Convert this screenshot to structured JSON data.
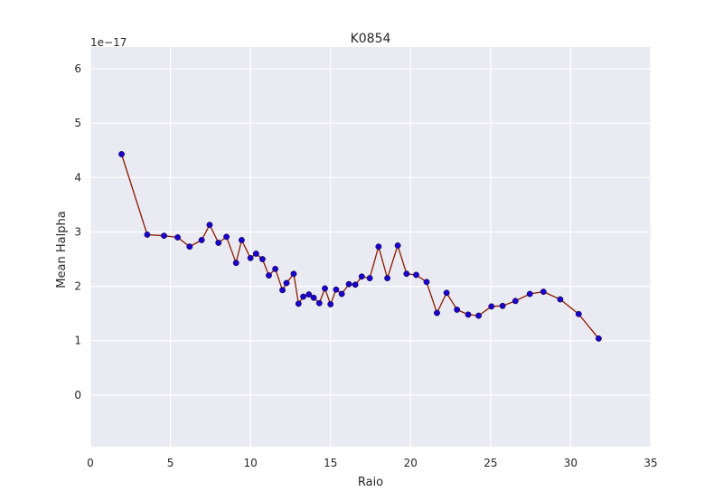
{
  "chart_data": {
    "type": "line",
    "title": "K0854",
    "xlabel": "Raio",
    "ylabel": "Mean Halpha",
    "y_offset_text": "1e−17",
    "xlim": [
      0,
      35
    ],
    "ylim": [
      -0.95,
      6.4
    ],
    "xticks": [
      0,
      5,
      10,
      15,
      20,
      25,
      30,
      35
    ],
    "yticks": [
      0,
      1,
      2,
      3,
      4,
      5,
      6
    ],
    "grid": true,
    "style": {
      "background": "#EAEAF2",
      "grid_color": "#FFFFFF",
      "line_color": "#8B1A00",
      "marker_color": "#1A00CC"
    },
    "series": [
      {
        "x": [
          1.95,
          3.55,
          4.6,
          5.45,
          6.2,
          6.95,
          7.45,
          8.0,
          8.5,
          9.1,
          9.45,
          10.0,
          10.35,
          10.75,
          11.15,
          11.55,
          12.0,
          12.25,
          12.7,
          13.0,
          13.3,
          13.65,
          13.95,
          14.3,
          14.65,
          15.0,
          15.35,
          15.7,
          16.15,
          16.55,
          16.95,
          17.45,
          18.0,
          18.55,
          19.2,
          19.75,
          20.35,
          21.0,
          21.65,
          22.25,
          22.9,
          23.6,
          24.25,
          25.05,
          25.75,
          26.55,
          27.45,
          28.3,
          29.35,
          30.5,
          31.75
        ],
        "y": [
          4.43,
          2.95,
          2.93,
          2.9,
          2.73,
          2.85,
          3.13,
          2.8,
          2.91,
          2.43,
          2.85,
          2.52,
          2.6,
          2.5,
          2.2,
          2.32,
          1.93,
          2.06,
          2.23,
          1.68,
          1.81,
          1.85,
          1.79,
          1.69,
          1.96,
          1.67,
          1.94,
          1.86,
          2.04,
          2.03,
          2.18,
          2.15,
          2.73,
          2.15,
          2.75,
          2.23,
          2.21,
          2.08,
          1.51,
          1.88,
          1.57,
          1.48,
          1.46,
          1.63,
          1.64,
          1.73,
          1.86,
          1.9,
          1.76,
          1.49,
          1.04
        ]
      }
    ]
  }
}
